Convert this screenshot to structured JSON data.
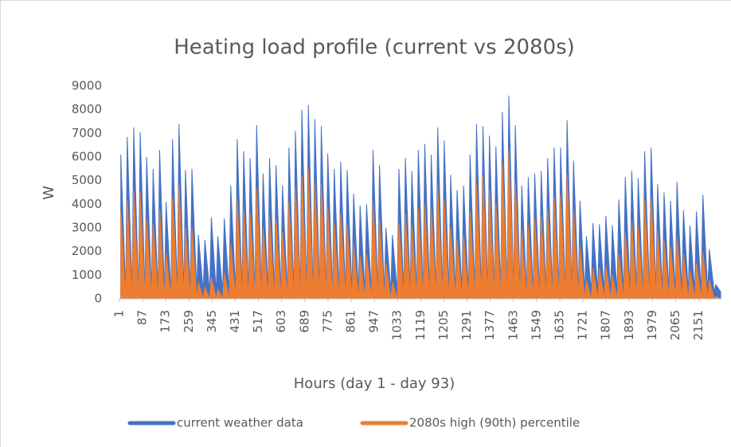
{
  "chart_data": {
    "type": "area",
    "title": "Heating load profile (current vs 2080s)",
    "x_label": "Hours (day 1 - day 93)",
    "y_label": "W",
    "x": [
      6,
      24,
      30,
      48,
      54,
      72,
      78,
      96,
      102,
      120,
      126,
      144,
      150,
      168,
      174,
      192,
      198,
      216,
      222,
      240,
      246,
      264,
      270,
      288,
      294,
      312,
      318,
      336,
      342,
      360,
      366,
      384,
      390,
      408,
      414,
      432,
      438,
      456,
      462,
      480,
      486,
      504,
      510,
      528,
      534,
      552,
      558,
      576,
      582,
      600,
      606,
      624,
      630,
      648,
      654,
      672,
      678,
      696,
      702,
      720,
      726,
      744,
      750,
      768,
      774,
      792,
      798,
      816,
      822,
      840,
      846,
      864,
      870,
      888,
      894,
      912,
      918,
      936,
      942,
      960,
      966,
      984,
      990,
      1008,
      1014,
      1032,
      1038,
      1056,
      1062,
      1080,
      1086,
      1104,
      1110,
      1128,
      1134,
      1152,
      1158,
      1176,
      1182,
      1200,
      1206,
      1224,
      1230,
      1248,
      1254,
      1272,
      1278,
      1296,
      1302,
      1320,
      1326,
      1344,
      1350,
      1368,
      1374,
      1392,
      1398,
      1416,
      1422,
      1440,
      1446,
      1464,
      1470,
      1488,
      1494,
      1512,
      1518,
      1536,
      1542,
      1560,
      1566,
      1584,
      1590,
      1608,
      1614,
      1632,
      1638,
      1656,
      1662,
      1680,
      1686,
      1704,
      1710,
      1728,
      1734,
      1752,
      1758,
      1776,
      1782,
      1800,
      1806,
      1824,
      1830,
      1848,
      1854,
      1872,
      1878,
      1896,
      1902,
      1920,
      1926,
      1944,
      1950,
      1968,
      1974,
      1992,
      1998,
      2016,
      2022,
      2040,
      2046,
      2064,
      2070,
      2088,
      2094,
      2112,
      2118,
      2136,
      2142,
      2160,
      2166,
      2184,
      2190,
      2208,
      2214,
      2232
    ],
    "series": [
      {
        "name": "current weather data",
        "color": "#4472c4",
        "values": [
          6100,
          300,
          6850,
          300,
          7250,
          300,
          7050,
          300,
          6000,
          300,
          5500,
          300,
          6300,
          300,
          4100,
          300,
          6750,
          300,
          7400,
          300,
          5450,
          300,
          5500,
          300,
          2700,
          300,
          2500,
          300,
          3450,
          300,
          2650,
          300,
          3400,
          300,
          4800,
          300,
          6750,
          300,
          6250,
          300,
          5950,
          300,
          7350,
          300,
          5300,
          300,
          5950,
          300,
          5650,
          300,
          4800,
          300,
          6400,
          300,
          7100,
          300,
          8000,
          300,
          8200,
          300,
          7600,
          300,
          7300,
          300,
          6150,
          300,
          5500,
          300,
          5800,
          300,
          5450,
          300,
          4450,
          300,
          3950,
          300,
          4000,
          300,
          6300,
          300,
          5650,
          300,
          3000,
          300,
          2700,
          300,
          5500,
          300,
          5950,
          300,
          5400,
          300,
          6300,
          300,
          6550,
          300,
          6100,
          300,
          7250,
          300,
          6700,
          300,
          5250,
          300,
          4600,
          300,
          4800,
          300,
          6100,
          300,
          7400,
          300,
          7300,
          300,
          6900,
          300,
          6450,
          300,
          7900,
          300,
          8600,
          300,
          7350,
          300,
          4800,
          300,
          5150,
          300,
          5300,
          300,
          5400,
          300,
          5950,
          300,
          6400,
          300,
          6400,
          300,
          7550,
          300,
          5850,
          300,
          4150,
          300,
          2650,
          300,
          3200,
          300,
          3150,
          300,
          3500,
          300,
          3100,
          300,
          4200,
          300,
          5150,
          300,
          5400,
          300,
          5100,
          300,
          6250,
          300,
          6400,
          300,
          4850,
          300,
          4500,
          300,
          4150,
          300,
          4950,
          300,
          3750,
          300,
          3100,
          300,
          3700,
          300,
          4400,
          300,
          2100,
          300,
          600,
          300
        ]
      },
      {
        "name": "2080s high (90th) percentile",
        "color": "#ed7d31",
        "values": [
          3650,
          0,
          4200,
          0,
          4600,
          0,
          4500,
          0,
          3400,
          0,
          3200,
          0,
          3800,
          0,
          1950,
          0,
          4300,
          0,
          4800,
          0,
          3000,
          0,
          3000,
          0,
          700,
          0,
          500,
          0,
          900,
          0,
          400,
          0,
          1100,
          0,
          2300,
          0,
          4200,
          0,
          3800,
          0,
          3600,
          0,
          4700,
          0,
          3000,
          0,
          3500,
          0,
          3400,
          0,
          2800,
          0,
          4100,
          0,
          4700,
          0,
          5200,
          0,
          5500,
          0,
          4900,
          0,
          4850,
          0,
          3900,
          0,
          3200,
          0,
          3600,
          0,
          3200,
          0,
          2300,
          0,
          1800,
          0,
          1900,
          0,
          4100,
          0,
          3400,
          0,
          1500,
          0,
          700,
          0,
          3200,
          0,
          3600,
          0,
          3100,
          0,
          3800,
          0,
          4000,
          0,
          3800,
          0,
          4800,
          0,
          4200,
          0,
          3000,
          0,
          2500,
          0,
          2700,
          0,
          3700,
          0,
          4900,
          0,
          5200,
          0,
          4600,
          0,
          4000,
          0,
          5700,
          0,
          6300,
          0,
          4900,
          0,
          2900,
          0,
          3100,
          0,
          3400,
          0,
          3500,
          0,
          3800,
          0,
          4300,
          0,
          4400,
          0,
          5300,
          0,
          3800,
          0,
          2200,
          0,
          800,
          0,
          1300,
          0,
          1300,
          0,
          1400,
          0,
          1000,
          0,
          1900,
          0,
          2800,
          0,
          3300,
          0,
          3100,
          0,
          4200,
          0,
          4300,
          0,
          2900,
          0,
          2500,
          0,
          2200,
          0,
          2600,
          0,
          1900,
          0,
          1200,
          0,
          1500,
          0,
          2000,
          0,
          800,
          0,
          100,
          0
        ]
      }
    ],
    "xlim": [
      1,
      2232
    ],
    "xticks": [
      1,
      87,
      173,
      259,
      345,
      431,
      517,
      603,
      689,
      775,
      861,
      947,
      1033,
      1119,
      1205,
      1291,
      1377,
      1463,
      1549,
      1635,
      1721,
      1807,
      1893,
      1979,
      2065,
      2151
    ],
    "ylim": [
      0,
      9000
    ],
    "yticks": [
      0,
      1000,
      2000,
      3000,
      4000,
      5000,
      6000,
      7000,
      8000,
      9000
    ],
    "legend": "bottom"
  }
}
